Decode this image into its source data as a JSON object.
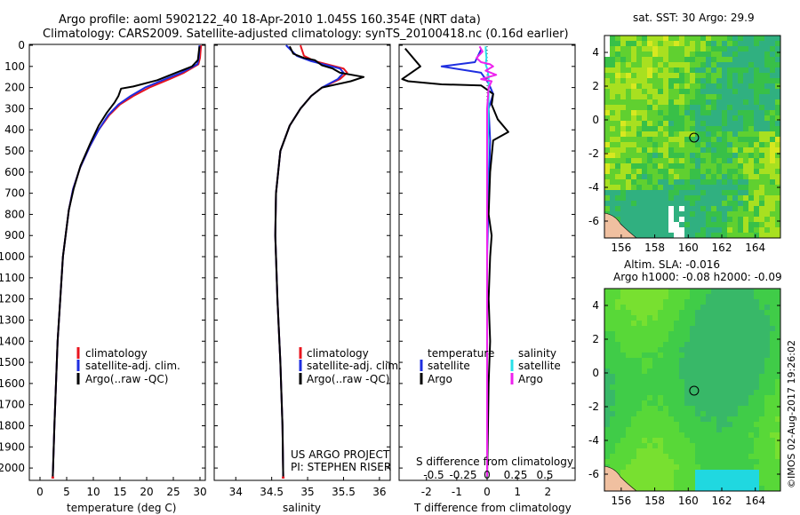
{
  "header": {
    "line1": "Argo profile: aoml 5902122_40 18-Apr-2010 1.045S 160.354E (NRT data)",
    "line2": "Climatology: CARS2009. Satellite-adjusted climatology: synTS_20100418.nc (0.16d earlier)"
  },
  "colors": {
    "climatology": "#e8141e",
    "satellite": "#1e2ee0",
    "argo": "#000000",
    "sat_salinity": "#28e0e8",
    "argo_salinity": "#ee22ee"
  },
  "depth_ticks": [
    0,
    100,
    200,
    300,
    400,
    500,
    600,
    700,
    800,
    900,
    1000,
    1100,
    1200,
    1300,
    1400,
    1500,
    1600,
    1700,
    1800,
    1900,
    2000
  ],
  "chart_data": [
    {
      "type": "line",
      "title": "",
      "xlabel": "temperature (deg C)",
      "ylabel": "depth",
      "xlim": [
        -2,
        31
      ],
      "ylim": [
        2050,
        0
      ],
      "xticks": [
        0,
        5,
        10,
        15,
        20,
        25,
        30
      ],
      "legend": [
        "climatology",
        "satellite-adj. clim.",
        "Argo(..raw -QC)"
      ],
      "series": [
        {
          "name": "climatology",
          "points": [
            [
              30.2,
              0
            ],
            [
              30.0,
              60
            ],
            [
              29.7,
              90
            ],
            [
              27,
              130
            ],
            [
              24.3,
              160
            ],
            [
              20.5,
              200
            ],
            [
              17.5,
              240
            ],
            [
              15,
              280
            ],
            [
              13,
              330
            ],
            [
              11,
              400
            ],
            [
              9.3,
              480
            ],
            [
              7.5,
              580
            ],
            [
              6.2,
              680
            ],
            [
              5.4,
              780
            ],
            [
              4.8,
              900
            ],
            [
              4.3,
              1000
            ],
            [
              3.8,
              1200
            ],
            [
              3.3,
              1400
            ],
            [
              3,
              1600
            ],
            [
              2.7,
              1800
            ],
            [
              2.4,
              2040
            ]
          ]
        },
        {
          "name": "satellite-adj. clim.",
          "points": [
            [
              29.9,
              0
            ],
            [
              29.8,
              60
            ],
            [
              29.5,
              90
            ],
            [
              26.5,
              130
            ],
            [
              23.5,
              160
            ],
            [
              19.7,
              200
            ],
            [
              17,
              240
            ],
            [
              14.7,
              280
            ],
            [
              12.8,
              330
            ],
            [
              11,
              400
            ],
            [
              9.3,
              480
            ],
            [
              7.5,
              580
            ],
            [
              6.2,
              680
            ],
            [
              5.4,
              780
            ],
            [
              4.8,
              900
            ],
            [
              4.3,
              1000
            ],
            [
              3.8,
              1200
            ],
            [
              3.3,
              1400
            ],
            [
              3,
              1600
            ],
            [
              2.7,
              1800
            ],
            [
              2.4,
              2040
            ]
          ]
        },
        {
          "name": "Argo(..raw -QC)",
          "points": [
            [
              29.9,
              5
            ],
            [
              29.6,
              70
            ],
            [
              28.5,
              100
            ],
            [
              24.5,
              140
            ],
            [
              22,
              165
            ],
            [
              17.5,
              195
            ],
            [
              15.2,
              205
            ],
            [
              14.7,
              240
            ],
            [
              14,
              270
            ],
            [
              12.5,
              320
            ],
            [
              11,
              380
            ],
            [
              9.5,
              460
            ],
            [
              7.6,
              570
            ],
            [
              6.3,
              680
            ],
            [
              5.4,
              780
            ],
            [
              4.8,
              900
            ],
            [
              4.3,
              1000
            ],
            [
              3.8,
              1200
            ],
            [
              3.3,
              1400
            ],
            [
              3,
              1600
            ],
            [
              2.7,
              1800
            ],
            [
              2.4,
              2040
            ]
          ]
        }
      ]
    },
    {
      "type": "line",
      "title": "",
      "xlabel": "salinity",
      "ylabel": "depth",
      "xlim": [
        33.7,
        36.15
      ],
      "ylim": [
        2050,
        0
      ],
      "xticks": [
        34,
        34.5,
        35,
        35.5,
        36
      ],
      "legend": [
        "climatology",
        "satellite-adj. clim.",
        "Argo(..raw -QC)"
      ],
      "credits": [
        "US ARGO PROJECT",
        "PI: STEPHEN RISER"
      ],
      "series": [
        {
          "name": "climatology",
          "points": [
            [
              34.9,
              0
            ],
            [
              34.95,
              50
            ],
            [
              35.1,
              75
            ],
            [
              35.5,
              110
            ],
            [
              35.55,
              130
            ],
            [
              35.45,
              160
            ],
            [
              35.2,
              200
            ],
            [
              35.05,
              240
            ],
            [
              34.9,
              300
            ],
            [
              34.75,
              380
            ],
            [
              34.62,
              500
            ],
            [
              34.56,
              700
            ],
            [
              34.55,
              900
            ],
            [
              34.58,
              1200
            ],
            [
              34.62,
              1500
            ],
            [
              34.65,
              1800
            ],
            [
              34.66,
              2040
            ]
          ]
        },
        {
          "name": "satellite-adj. clim.",
          "points": [
            [
              34.7,
              0
            ],
            [
              34.85,
              50
            ],
            [
              35.05,
              75
            ],
            [
              35.45,
              110
            ],
            [
              35.5,
              130
            ],
            [
              35.42,
              160
            ],
            [
              35.2,
              200
            ],
            [
              35.05,
              240
            ],
            [
              34.9,
              300
            ],
            [
              34.75,
              380
            ],
            [
              34.62,
              500
            ],
            [
              34.56,
              700
            ],
            [
              34.55,
              900
            ],
            [
              34.58,
              1200
            ],
            [
              34.62,
              1500
            ],
            [
              34.65,
              1800
            ],
            [
              34.66,
              2040
            ]
          ]
        },
        {
          "name": "Argo(..raw -QC)",
          "points": [
            [
              34.75,
              5
            ],
            [
              34.8,
              40
            ],
            [
              34.95,
              60
            ],
            [
              35.1,
              70
            ],
            [
              35.2,
              95
            ],
            [
              35.35,
              110
            ],
            [
              35.45,
              130
            ],
            [
              35.78,
              150
            ],
            [
              35.6,
              170
            ],
            [
              35.2,
              200
            ],
            [
              35.05,
              240
            ],
            [
              34.9,
              300
            ],
            [
              34.75,
              380
            ],
            [
              34.62,
              500
            ],
            [
              34.56,
              700
            ],
            [
              34.55,
              900
            ],
            [
              34.58,
              1200
            ],
            [
              34.62,
              1500
            ],
            [
              34.65,
              1800
            ],
            [
              34.66,
              2040
            ]
          ]
        }
      ]
    },
    {
      "type": "line",
      "title": "",
      "xlabel": "T difference from climatology",
      "ylabel": "depth",
      "xlim": [
        -2.9,
        2.9
      ],
      "ylim": [
        2050,
        0
      ],
      "xticks": [
        -2,
        -1,
        0,
        1,
        2
      ],
      "top_tick_labels": [
        "-0.5",
        "-0.25",
        "0",
        "0.25",
        "0.5"
      ],
      "top_label": "S difference from climatology",
      "legend_headers": [
        "temperature",
        "salinity"
      ],
      "legend": [
        "satellite",
        "Argo",
        "satellite",
        "Argo"
      ],
      "series": [
        {
          "name": "T satellite",
          "points": [
            [
              -0.2,
              20
            ],
            [
              -0.4,
              80
            ],
            [
              -1.5,
              100
            ],
            [
              -0.2,
              130
            ],
            [
              0.05,
              180
            ],
            [
              0.2,
              230
            ],
            [
              0.05,
              300
            ],
            [
              0.1,
              450
            ],
            [
              0.05,
              700
            ],
            [
              0,
              1000
            ],
            [
              0,
              1500
            ],
            [
              0,
              2040
            ]
          ]
        },
        {
          "name": "T Argo",
          "points": [
            [
              -2.7,
              15
            ],
            [
              -2.2,
              100
            ],
            [
              -2.8,
              160
            ],
            [
              -2.6,
              170
            ],
            [
              -1.5,
              185
            ],
            [
              -0.2,
              190
            ],
            [
              0.2,
              230
            ],
            [
              0.15,
              280
            ],
            [
              0.35,
              350
            ],
            [
              0.7,
              410
            ],
            [
              0.2,
              450
            ],
            [
              0.1,
              600
            ],
            [
              0.05,
              800
            ],
            [
              0.15,
              900
            ],
            [
              0.1,
              1000
            ],
            [
              0.05,
              1200
            ],
            [
              0.1,
              1400
            ],
            [
              0.05,
              1600
            ],
            [
              0.03,
              1800
            ],
            [
              0,
              2040
            ]
          ]
        },
        {
          "name": "S satellite",
          "points": [
            [
              -0.05,
              5
            ],
            [
              -0.04,
              30
            ],
            [
              -0.02,
              60
            ],
            [
              -0.05,
              90
            ],
            [
              0.0,
              110
            ],
            [
              0.05,
              150
            ],
            [
              0.05,
              250
            ],
            [
              0.02,
              500
            ],
            [
              0.0,
              800
            ],
            [
              0.0,
              1200
            ],
            [
              0.0,
              1600
            ],
            [
              0.0,
              2040
            ]
          ]
        },
        {
          "name": "S Argo",
          "points": [
            [
              -0.25,
              5
            ],
            [
              -0.15,
              30
            ],
            [
              -0.35,
              60
            ],
            [
              -0.2,
              80
            ],
            [
              0.1,
              90
            ],
            [
              0.2,
              100
            ],
            [
              -0.05,
              120
            ],
            [
              0.3,
              140
            ],
            [
              -0.2,
              160
            ],
            [
              0.15,
              170
            ],
            [
              0.05,
              200
            ],
            [
              0.0,
              300
            ],
            [
              0.0,
              600
            ],
            [
              0.0,
              1200
            ],
            [
              0.0,
              2040
            ]
          ]
        }
      ]
    },
    {
      "type": "heatmap",
      "title": "sat. SST: 30 Argo: 29.9",
      "xlim": [
        155,
        165.5
      ],
      "ylim": [
        -7,
        5
      ],
      "xticks": [
        156,
        158,
        160,
        162,
        164
      ],
      "yticks": [
        4,
        2,
        0,
        -2,
        -4,
        -6
      ],
      "marker": [
        160.35,
        -1.05
      ]
    },
    {
      "type": "heatmap",
      "title": "Altim. SLA: -0.016",
      "subtitle": "Argo h1000: -0.08 h2000: -0.09",
      "xlim": [
        155,
        165.5
      ],
      "ylim": [
        -7,
        5
      ],
      "xticks": [
        156,
        158,
        160,
        162,
        164
      ],
      "yticks": [
        4,
        2,
        0,
        -2,
        -4,
        -6
      ],
      "marker": [
        160.35,
        -1.05
      ]
    }
  ],
  "stamp": "©IMOS 02-Aug-2017 19:26:02"
}
